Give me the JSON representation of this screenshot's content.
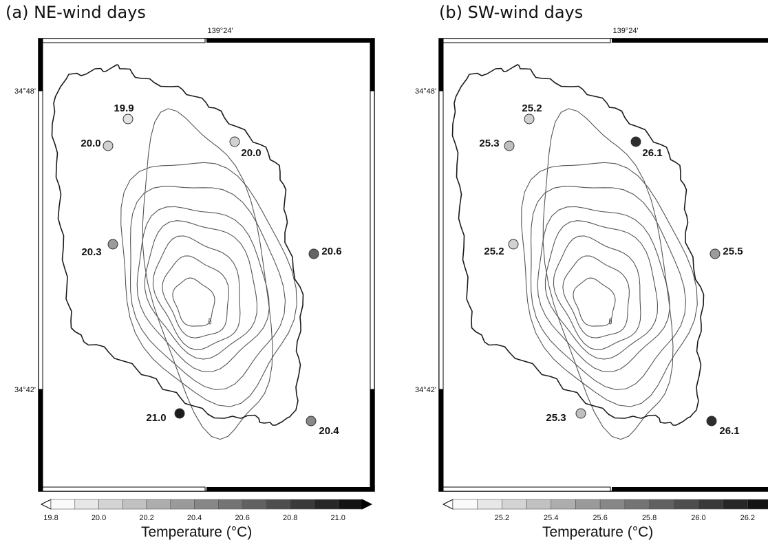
{
  "panels": [
    {
      "id": "a",
      "title": "(a) NE-wind days",
      "lon_label": "139°24'",
      "lat_labels": [
        "34°48'",
        "34°42'"
      ],
      "stations": [
        {
          "value": "19.9",
          "temp": 19.9
        },
        {
          "value": "20.0",
          "temp": 20.0
        },
        {
          "value": "20.0",
          "temp": 20.0
        },
        {
          "value": "20.3",
          "temp": 20.3
        },
        {
          "value": "20.6",
          "temp": 20.6
        },
        {
          "value": "21.0",
          "temp": 21.0
        },
        {
          "value": "20.4",
          "temp": 20.4
        }
      ],
      "colorbar": {
        "min": 19.8,
        "max": 21.1,
        "ticks": [
          "19.8",
          "20.0",
          "20.2",
          "20.4",
          "20.6",
          "20.8",
          "21.0"
        ],
        "label": "Temperature (°C)"
      }
    },
    {
      "id": "b",
      "title": "(b) SW-wind days",
      "lon_label": "139°24'",
      "lat_labels": [
        "34°48'",
        "34°42'"
      ],
      "stations": [
        {
          "value": "25.2",
          "temp": 25.2
        },
        {
          "value": "25.3",
          "temp": 25.3
        },
        {
          "value": "26.1",
          "temp": 26.1
        },
        {
          "value": "25.2",
          "temp": 25.2
        },
        {
          "value": "25.5",
          "temp": 25.5
        },
        {
          "value": "25.3",
          "temp": 25.3
        },
        {
          "value": "26.1",
          "temp": 26.1
        }
      ],
      "colorbar": {
        "min": 25.0,
        "max": 26.3,
        "ticks": [
          "25.2",
          "25.4",
          "25.6",
          "25.8",
          "26.0",
          "26.2"
        ],
        "label": "Temperature (°C)"
      }
    }
  ],
  "colors": {
    "coast": "#1a1a1a",
    "contour": "#555555",
    "frame": "#000000",
    "station_outline": "#333333"
  }
}
